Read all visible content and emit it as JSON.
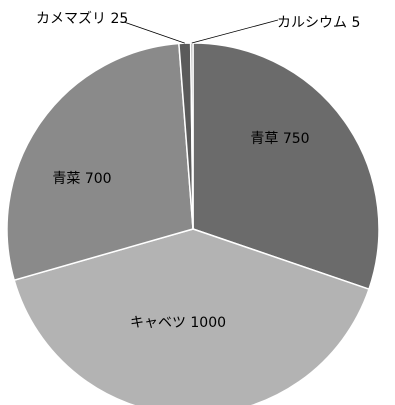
{
  "chart_data": {
    "type": "pie",
    "categories": [
      "青草",
      "キャベツ",
      "青菜",
      "カメマズリ",
      "カルシウム"
    ],
    "values": [
      750,
      1000,
      700,
      25,
      5
    ],
    "data_labels": [
      "青草 750",
      "キャベツ 1000",
      "青菜 700",
      "カメマズリ 25",
      "カルシウム 5"
    ],
    "colors": [
      "#6b6b6b",
      "#b3b3b3",
      "#8a8a8a",
      "#5a5a5a",
      "#9a9a9a"
    ],
    "start_angle_deg": 0,
    "direction": "clockwise",
    "legend": "none",
    "title": ""
  }
}
